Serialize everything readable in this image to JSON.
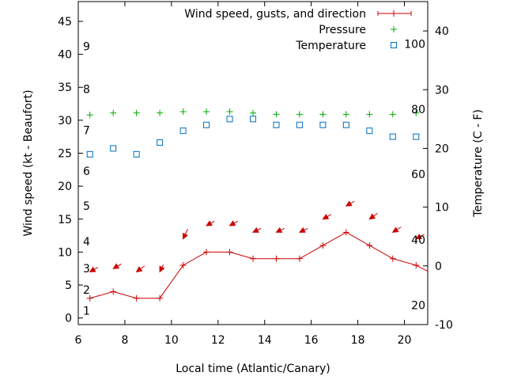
{
  "chart_data": {
    "type": "line",
    "xlabel": "Local time (Atlantic/Canary)",
    "ylabel": "Wind speed (kt - Beaufort)",
    "y2label": "Temperature (C - F)",
    "xlim": [
      6,
      21
    ],
    "ylim": [
      -1,
      48
    ],
    "y2lim": [
      -10,
      45
    ],
    "x_ticks": [
      6,
      8,
      10,
      12,
      14,
      16,
      18,
      20
    ],
    "y_ticks": [
      0,
      5,
      10,
      15,
      20,
      25,
      30,
      35,
      40,
      45
    ],
    "y2_ticks": [
      -10,
      0,
      10,
      20,
      30,
      40
    ],
    "beaufort_labels": [
      {
        "label": "1",
        "y": 1.1
      },
      {
        "label": "2",
        "y": 4.3
      },
      {
        "label": "3",
        "y": 7.5
      },
      {
        "label": "4",
        "y": 11.6
      },
      {
        "label": "5",
        "y": 17
      },
      {
        "label": "6",
        "y": 22.3
      },
      {
        "label": "7",
        "y": 28.5
      },
      {
        "label": "8",
        "y": 34.7
      },
      {
        "label": "9",
        "y": 41.2
      }
    ],
    "fahrenheit_labels": [
      {
        "label": "20",
        "c": -6.7
      },
      {
        "label": "40",
        "c": 4.4
      },
      {
        "label": "60",
        "c": 15.6
      },
      {
        "label": "80",
        "c": 26.7
      },
      {
        "label": "100",
        "c": 37.8
      }
    ],
    "legend_position": "top-right",
    "series": [
      {
        "name": "Wind speed, gusts, and direction",
        "color": "#cc0000",
        "style": "line-with-plus",
        "x": [
          6.5,
          7.5,
          8.5,
          9.5,
          10.5,
          11.5,
          12.5,
          13.5,
          14.5,
          15.5,
          16.5,
          17.5,
          18.5,
          19.5,
          20.5,
          21
        ],
        "values": [
          3,
          4,
          3,
          3,
          8,
          10,
          10,
          9,
          9,
          9,
          11,
          13,
          11,
          9,
          8,
          7.1
        ]
      },
      {
        "name": "Pressure",
        "color": "#00aa00",
        "style": "plus",
        "x": [
          6.5,
          7.5,
          8.5,
          9.5,
          10.5,
          11.5,
          12.5,
          13.5,
          14.5,
          15.5,
          16.5,
          17.5,
          18.5,
          19.5,
          20.5
        ],
        "values": [
          30.8,
          31.1,
          31.1,
          31.1,
          31.3,
          31.3,
          31.3,
          31.1,
          30.9,
          30.9,
          30.9,
          30.9,
          30.9,
          30.9,
          31.1
        ]
      },
      {
        "name": "Temperature",
        "color": "#0070c0",
        "style": "square",
        "axis": "y2",
        "x": [
          6.5,
          7.5,
          8.5,
          9.5,
          10.5,
          11.5,
          12.5,
          13.5,
          14.5,
          15.5,
          16.5,
          17.5,
          18.5,
          19.5,
          20.5
        ],
        "values": [
          19,
          20,
          19,
          21,
          23,
          24,
          25,
          25,
          24,
          24,
          24,
          24,
          23,
          22,
          22
        ]
      }
    ],
    "wind_arrows": {
      "color": "#cc0000",
      "x": [
        6.5,
        7.5,
        8.5,
        9.5,
        10.5,
        11.5,
        12.5,
        13.5,
        14.5,
        15.5,
        16.5,
        17.5,
        18.5,
        19.5,
        20.5
      ],
      "y": [
        7,
        7.5,
        7,
        7,
        12,
        14,
        14,
        13,
        13,
        13,
        15,
        17,
        15,
        13,
        12
      ],
      "dx": [
        0.35,
        0.35,
        0.35,
        0.15,
        0.2,
        0.35,
        0.35,
        0.35,
        0.35,
        0.35,
        0.35,
        0.35,
        0.35,
        0.35,
        0.35
      ],
      "dy": [
        -0.7,
        -0.7,
        -0.9,
        -1.1,
        -1.5,
        -0.7,
        -0.7,
        -0.6,
        -0.6,
        -0.6,
        -0.7,
        -0.7,
        -0.9,
        -0.8,
        -0.7
      ]
    }
  }
}
